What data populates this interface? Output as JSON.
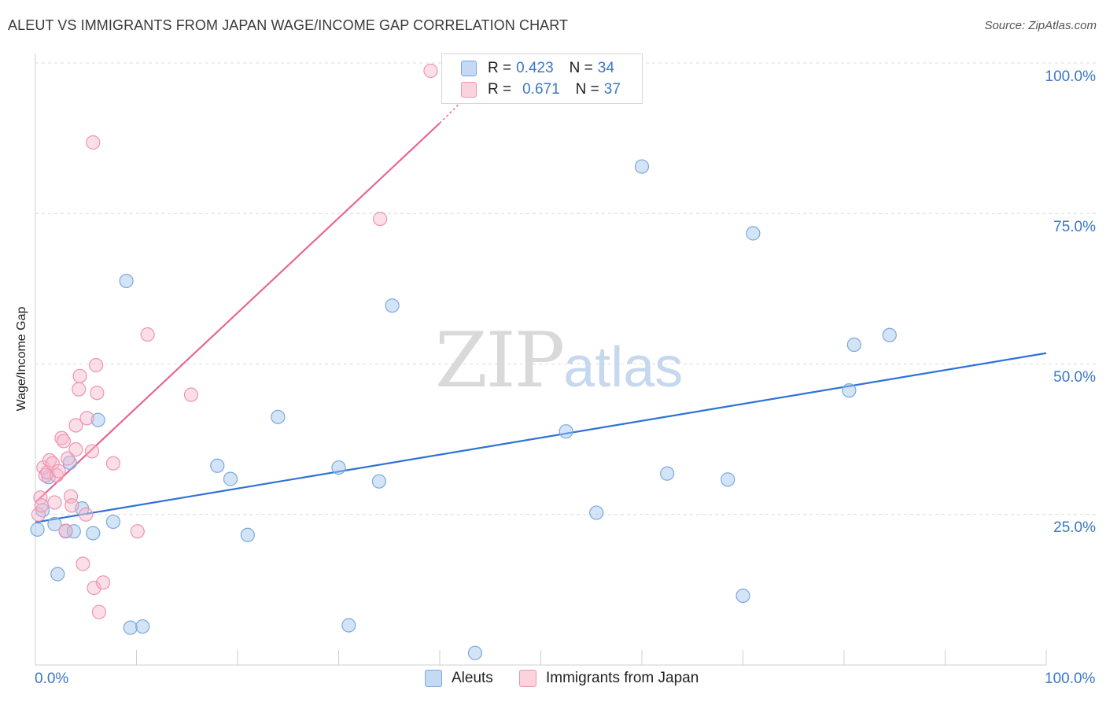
{
  "title": "ALEUT VS IMMIGRANTS FROM JAPAN WAGE/INCOME GAP CORRELATION CHART",
  "source": "Source: ZipAtlas.com",
  "watermark": {
    "zip": "ZIP",
    "atlas": "atlas"
  },
  "legend": {
    "rows": [
      {
        "r_label": "R =",
        "r_value": "0.423",
        "n_label": "N =",
        "n_value": "34",
        "color": "#9ec3ee"
      },
      {
        "r_label": "R =",
        "r_value": "0.671",
        "n_label": "N =",
        "n_value": "37",
        "color": "#f7b8cb"
      }
    ]
  },
  "bottom_legend": [
    {
      "label": "Aleuts",
      "color": "#9ec3ee"
    },
    {
      "label": "Immigrants from Japan",
      "color": "#f7b8cb"
    }
  ],
  "colors": {
    "aleut_fill": "rgba(158,195,238,0.45)",
    "aleut_stroke": "#7aa9de",
    "aleut_line": "#2f72d6",
    "japan_fill": "rgba(247,184,203,0.45)",
    "japan_stroke": "#ee94b0",
    "japan_line": "#e8678f",
    "axis_text": "#3a78c9",
    "grid": "#dcdcdc"
  },
  "chart_data": {
    "type": "scatter",
    "title": "ALEUT VS IMMIGRANTS FROM JAPAN WAGE/INCOME GAP CORRELATION CHART",
    "xlabel": "",
    "ylabel": "Wage/Income Gap",
    "xlim": [
      0,
      100
    ],
    "ylim": [
      0,
      100
    ],
    "x_ticks": [
      "0.0%",
      "100.0%"
    ],
    "y_ticks": [
      "25.0%",
      "50.0%",
      "75.0%",
      "100.0%"
    ],
    "grid": "horizontal dashed",
    "legend_position": "top-center",
    "series": [
      {
        "name": "Aleuts",
        "r": 0.423,
        "n": 34,
        "points": [
          [
            0.2,
            22.5
          ],
          [
            0.7,
            25.7
          ],
          [
            1.3,
            31.2
          ],
          [
            1.9,
            23.4
          ],
          [
            2.2,
            15.1
          ],
          [
            3.0,
            22.2
          ],
          [
            3.4,
            33.6
          ],
          [
            3.8,
            22.2
          ],
          [
            4.6,
            26.0
          ],
          [
            5.7,
            21.9
          ],
          [
            6.2,
            40.7
          ],
          [
            7.7,
            23.8
          ],
          [
            9.0,
            63.8
          ],
          [
            9.4,
            6.2
          ],
          [
            10.6,
            6.4
          ],
          [
            18.0,
            33.1
          ],
          [
            19.3,
            30.9
          ],
          [
            21.0,
            21.6
          ],
          [
            24.0,
            41.2
          ],
          [
            30.0,
            32.8
          ],
          [
            31.0,
            6.6
          ],
          [
            34.0,
            30.5
          ],
          [
            35.3,
            59.7
          ],
          [
            43.5,
            2.0
          ],
          [
            52.5,
            38.8
          ],
          [
            55.5,
            25.3
          ],
          [
            60.0,
            82.8
          ],
          [
            62.5,
            31.8
          ],
          [
            68.5,
            30.8
          ],
          [
            70.0,
            11.5
          ],
          [
            71.0,
            71.7
          ],
          [
            80.5,
            45.6
          ],
          [
            81.0,
            53.2
          ],
          [
            84.5,
            54.8
          ]
        ],
        "trend": {
          "x": [
            0,
            100
          ],
          "y": [
            23.7,
            51.8
          ]
        }
      },
      {
        "name": "Immigrants from Japan",
        "r": 0.671,
        "n": 37,
        "points": [
          [
            0.3,
            25.0
          ],
          [
            0.5,
            27.8
          ],
          [
            0.6,
            26.5
          ],
          [
            0.8,
            32.8
          ],
          [
            1.0,
            31.5
          ],
          [
            1.2,
            32.0
          ],
          [
            1.4,
            34.0
          ],
          [
            1.7,
            33.5
          ],
          [
            1.9,
            27.0
          ],
          [
            2.1,
            31.5
          ],
          [
            2.3,
            32.2
          ],
          [
            2.6,
            37.7
          ],
          [
            2.8,
            37.2
          ],
          [
            3.0,
            22.3
          ],
          [
            3.2,
            34.3
          ],
          [
            3.5,
            28.0
          ],
          [
            3.6,
            26.5
          ],
          [
            4.0,
            35.8
          ],
          [
            4.0,
            39.8
          ],
          [
            4.3,
            45.8
          ],
          [
            4.4,
            48.0
          ],
          [
            4.7,
            16.8
          ],
          [
            5.0,
            25.0
          ],
          [
            5.1,
            41.0
          ],
          [
            5.6,
            35.5
          ],
          [
            5.7,
            86.8
          ],
          [
            5.8,
            12.8
          ],
          [
            6.0,
            49.8
          ],
          [
            6.1,
            45.2
          ],
          [
            6.3,
            8.8
          ],
          [
            6.7,
            13.7
          ],
          [
            7.7,
            33.5
          ],
          [
            10.1,
            22.2
          ],
          [
            11.1,
            54.9
          ],
          [
            15.4,
            44.9
          ],
          [
            34.1,
            74.1
          ],
          [
            39.1,
            98.7
          ]
        ],
        "trend": {
          "x": [
            0,
            40.0
          ],
          "y": [
            27.0,
            90.0
          ]
        },
        "trend_dashed_to": {
          "x": 42.4,
          "y": 94.0
        }
      }
    ]
  }
}
